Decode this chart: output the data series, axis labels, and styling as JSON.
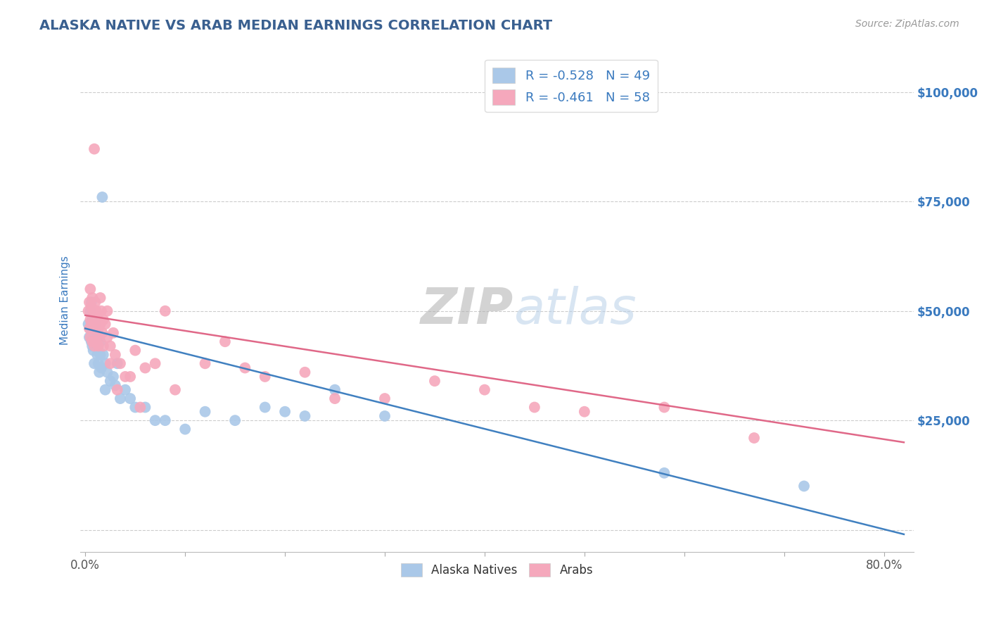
{
  "title": "ALASKA NATIVE VS ARAB MEDIAN EARNINGS CORRELATION CHART",
  "source": "Source: ZipAtlas.com",
  "ylabel": "Median Earnings",
  "yticks": [
    0,
    25000,
    50000,
    75000,
    100000
  ],
  "ytick_labels": [
    "",
    "$25,000",
    "$50,000",
    "$75,000",
    "$100,000"
  ],
  "xlim": [
    -0.005,
    0.83
  ],
  "ylim": [
    -5000,
    110000
  ],
  "xtick_positions": [
    0.0,
    0.1,
    0.2,
    0.3,
    0.4,
    0.5,
    0.6,
    0.7,
    0.8
  ],
  "xtick_labels": [
    "0.0%",
    "",
    "",
    "",
    "",
    "",
    "",
    "",
    "80.0%"
  ],
  "alaska_R": -0.528,
  "alaska_N": 49,
  "arab_R": -0.461,
  "arab_N": 58,
  "alaska_color": "#aac8e8",
  "arab_color": "#f5a8bc",
  "alaska_line_color": "#4080c0",
  "arab_line_color": "#e06888",
  "background_color": "#ffffff",
  "grid_color": "#cccccc",
  "title_color": "#3a6090",
  "tick_color": "#3a7abf",
  "bottom_label_color": "#333333",
  "watermark_zip_color": "#aaaaaa",
  "watermark_atlas_color": "#b8d0e8",
  "alaska_x": [
    0.003,
    0.004,
    0.005,
    0.005,
    0.006,
    0.006,
    0.007,
    0.007,
    0.008,
    0.008,
    0.009,
    0.009,
    0.01,
    0.01,
    0.011,
    0.012,
    0.012,
    0.013,
    0.013,
    0.014,
    0.015,
    0.015,
    0.016,
    0.017,
    0.018,
    0.02,
    0.02,
    0.022,
    0.025,
    0.028,
    0.03,
    0.032,
    0.035,
    0.04,
    0.045,
    0.05,
    0.06,
    0.07,
    0.08,
    0.1,
    0.12,
    0.15,
    0.18,
    0.2,
    0.22,
    0.25,
    0.3,
    0.58,
    0.72
  ],
  "alaska_y": [
    47000,
    44000,
    50000,
    46000,
    52000,
    43000,
    48000,
    42000,
    46000,
    41000,
    44000,
    38000,
    47000,
    42000,
    45000,
    43000,
    40000,
    41000,
    38000,
    36000,
    43000,
    40000,
    37000,
    76000,
    40000,
    38000,
    32000,
    36000,
    34000,
    35000,
    33000,
    38000,
    30000,
    32000,
    30000,
    28000,
    28000,
    25000,
    25000,
    23000,
    27000,
    25000,
    28000,
    27000,
    26000,
    32000,
    26000,
    13000,
    10000
  ],
  "arab_x": [
    0.003,
    0.004,
    0.004,
    0.005,
    0.005,
    0.005,
    0.006,
    0.006,
    0.007,
    0.007,
    0.008,
    0.008,
    0.009,
    0.009,
    0.01,
    0.01,
    0.011,
    0.011,
    0.012,
    0.013,
    0.013,
    0.014,
    0.015,
    0.015,
    0.016,
    0.017,
    0.018,
    0.018,
    0.02,
    0.022,
    0.022,
    0.025,
    0.025,
    0.028,
    0.03,
    0.032,
    0.035,
    0.04,
    0.045,
    0.05,
    0.055,
    0.06,
    0.07,
    0.08,
    0.09,
    0.12,
    0.14,
    0.16,
    0.18,
    0.22,
    0.25,
    0.3,
    0.35,
    0.4,
    0.45,
    0.5,
    0.58,
    0.67
  ],
  "arab_y": [
    50000,
    52000,
    46000,
    55000,
    48000,
    44000,
    51000,
    47000,
    53000,
    43000,
    50000,
    46000,
    87000,
    42000,
    52000,
    47000,
    50000,
    43000,
    49000,
    46000,
    42000,
    44000,
    53000,
    47000,
    50000,
    45000,
    48000,
    42000,
    47000,
    50000,
    44000,
    42000,
    38000,
    45000,
    40000,
    32000,
    38000,
    35000,
    35000,
    41000,
    28000,
    37000,
    38000,
    50000,
    32000,
    38000,
    43000,
    37000,
    35000,
    36000,
    30000,
    30000,
    34000,
    32000,
    28000,
    27000,
    28000,
    21000
  ],
  "ak_trend_x0": 0.0,
  "ak_trend_y0": 46000,
  "ak_trend_x1": 0.82,
  "ak_trend_y1": -1000,
  "ar_trend_x0": 0.0,
  "ar_trend_y0": 49000,
  "ar_trend_x1": 0.82,
  "ar_trend_y1": 20000
}
